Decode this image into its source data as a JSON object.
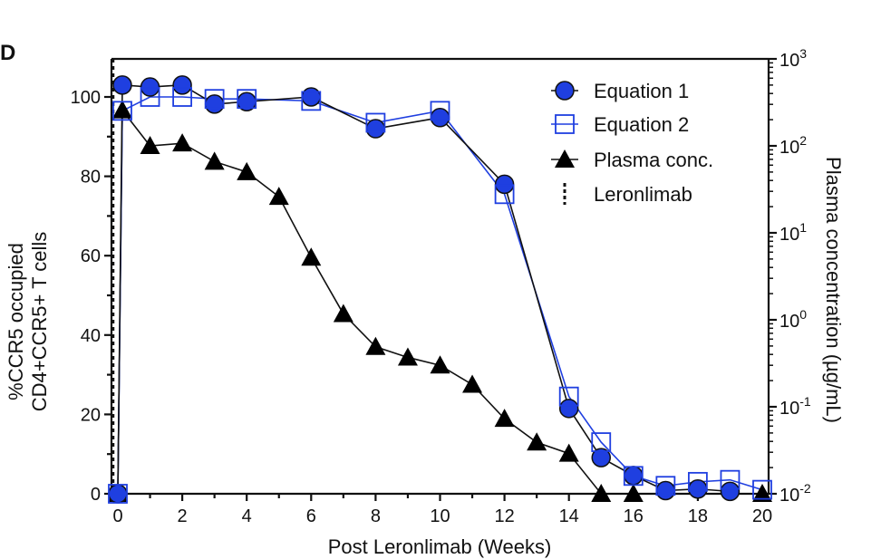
{
  "panel_label": "D",
  "chart_data": {
    "type": "line",
    "xlabel": "Post Leronlimab (Weeks)",
    "ylabel_lines": [
      "%CCR5 occupied",
      "CD4+CCR5+ T cells"
    ],
    "y2label": "Plasma concentration (µg/mL)",
    "xlim": [
      0,
      20
    ],
    "ylim": [
      0,
      100
    ],
    "y2lim": [
      0.01,
      1000
    ],
    "y2scale": "log",
    "xticks": [
      "0",
      "2",
      "4",
      "6",
      "8",
      "10",
      "12",
      "14",
      "16",
      "18",
      "20"
    ],
    "yticks": [
      "0",
      "20",
      "40",
      "60",
      "80",
      "100"
    ],
    "y2ticks": [
      {
        "base": "10",
        "exp": "-2",
        "value": 0.01
      },
      {
        "base": "10",
        "exp": "-1",
        "value": 0.1
      },
      {
        "base": "10",
        "exp": "0",
        "value": 1
      },
      {
        "base": "10",
        "exp": "1",
        "value": 10
      },
      {
        "base": "10",
        "exp": "2",
        "value": 100
      },
      {
        "base": "10",
        "exp": "3",
        "value": 1000
      }
    ],
    "legend_position": "top-right",
    "vline": {
      "name": "Leronlimab",
      "x": 0
    },
    "series": [
      {
        "name": "Equation 1",
        "marker": "circle-filled",
        "color": "#1f3fe0",
        "axis": "left",
        "x": [
          0,
          0.14,
          1,
          2,
          3,
          4,
          6,
          8,
          10,
          12,
          14,
          15,
          16,
          17,
          18,
          19
        ],
        "y": [
          0,
          103,
          102.5,
          103,
          98.2,
          98.8,
          100,
          92,
          94.8,
          78,
          21.5,
          9.1,
          4.6,
          0.8,
          1.2,
          0.6
        ]
      },
      {
        "name": "Equation 2",
        "marker": "square-open",
        "color": "#1f3fe0",
        "axis": "left",
        "x": [
          0,
          0.14,
          1,
          2,
          3,
          4,
          6,
          8,
          10,
          12,
          14,
          15,
          16,
          17,
          18,
          19,
          20
        ],
        "y": [
          0,
          96.5,
          100,
          100,
          99.5,
          99.5,
          99,
          93.5,
          96.5,
          75.5,
          24.5,
          13,
          4.5,
          2,
          3,
          3.5,
          1
        ]
      },
      {
        "name": "Plasma conc.",
        "marker": "triangle-filled",
        "color": "#000000",
        "axis": "right",
        "x": [
          0,
          0.14,
          1,
          2,
          3,
          4,
          5,
          6,
          7,
          8,
          9,
          10,
          11,
          12,
          13,
          14,
          15,
          16,
          20
        ],
        "y": [
          0.01,
          257,
          100,
          107,
          66,
          50,
          26,
          5.2,
          1.17,
          0.49,
          0.37,
          0.3,
          0.18,
          0.073,
          0.039,
          0.029,
          0.01,
          0.01,
          0.01
        ]
      }
    ]
  }
}
